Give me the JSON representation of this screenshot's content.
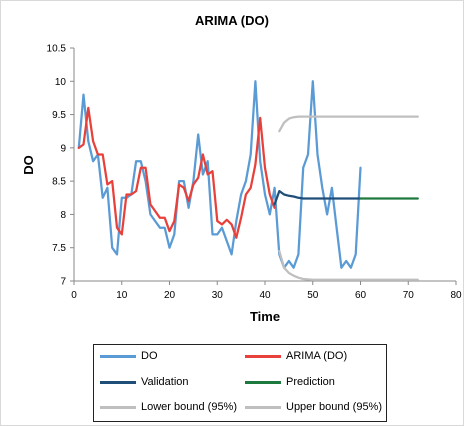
{
  "chart_data": {
    "type": "line",
    "title": "ARIMA (DO)",
    "xlabel": "Time",
    "ylabel": "DO",
    "xlim": [
      0,
      80
    ],
    "ylim": [
      7,
      10.5
    ],
    "x_ticks": [
      "0",
      "10",
      "20",
      "30",
      "40",
      "50",
      "60",
      "70",
      "80"
    ],
    "y_ticks": [
      "7",
      "7.5",
      "8",
      "8.5",
      "9",
      "9.5",
      "10",
      "10.5"
    ],
    "grid": false,
    "legend_position": "bottom",
    "series": [
      {
        "name": "DO",
        "color": "#5b9bd5",
        "points": [
          [
            1,
            9.0
          ],
          [
            2,
            9.8
          ],
          [
            3,
            9.1
          ],
          [
            4,
            8.8
          ],
          [
            5,
            8.9
          ],
          [
            6,
            8.25
          ],
          [
            7,
            8.4
          ],
          [
            8,
            7.5
          ],
          [
            9,
            7.4
          ],
          [
            10,
            8.25
          ],
          [
            11,
            8.25
          ],
          [
            12,
            8.3
          ],
          [
            13,
            8.8
          ],
          [
            14,
            8.8
          ],
          [
            15,
            8.5
          ],
          [
            16,
            8.0
          ],
          [
            17,
            7.9
          ],
          [
            18,
            7.8
          ],
          [
            19,
            7.8
          ],
          [
            20,
            7.5
          ],
          [
            21,
            7.7
          ],
          [
            22,
            8.5
          ],
          [
            23,
            8.5
          ],
          [
            24,
            8.1
          ],
          [
            25,
            8.5
          ],
          [
            26,
            9.2
          ],
          [
            27,
            8.6
          ],
          [
            28,
            8.8
          ],
          [
            29,
            7.7
          ],
          [
            30,
            7.7
          ],
          [
            31,
            7.8
          ],
          [
            32,
            7.6
          ],
          [
            33,
            7.4
          ],
          [
            34,
            7.9
          ],
          [
            35,
            8.3
          ],
          [
            36,
            8.5
          ],
          [
            37,
            8.9
          ],
          [
            38,
            10.0
          ],
          [
            39,
            8.8
          ],
          [
            40,
            8.3
          ],
          [
            41,
            8.0
          ],
          [
            42,
            8.4
          ],
          [
            43,
            7.4
          ],
          [
            44,
            7.2
          ],
          [
            45,
            7.3
          ],
          [
            46,
            7.2
          ],
          [
            47,
            7.4
          ],
          [
            48,
            8.7
          ],
          [
            49,
            8.9
          ],
          [
            50,
            10.0
          ],
          [
            51,
            8.9
          ],
          [
            52,
            8.4
          ],
          [
            53,
            8.0
          ],
          [
            54,
            8.4
          ],
          [
            55,
            7.8
          ],
          [
            56,
            7.2
          ],
          [
            57,
            7.3
          ],
          [
            58,
            7.2
          ],
          [
            59,
            7.4
          ],
          [
            60,
            8.7
          ]
        ]
      },
      {
        "name": "ARIMA (DO)",
        "color": "#e8413b",
        "points": [
          [
            1,
            9.0
          ],
          [
            2,
            9.05
          ],
          [
            3,
            9.6
          ],
          [
            4,
            9.1
          ],
          [
            5,
            8.9
          ],
          [
            6,
            8.9
          ],
          [
            7,
            8.45
          ],
          [
            8,
            8.5
          ],
          [
            9,
            7.8
          ],
          [
            10,
            7.7
          ],
          [
            11,
            8.3
          ],
          [
            12,
            8.3
          ],
          [
            13,
            8.35
          ],
          [
            14,
            8.7
          ],
          [
            15,
            8.7
          ],
          [
            16,
            8.15
          ],
          [
            17,
            8.05
          ],
          [
            18,
            7.95
          ],
          [
            19,
            7.95
          ],
          [
            20,
            7.75
          ],
          [
            21,
            7.9
          ],
          [
            22,
            8.45
          ],
          [
            23,
            8.4
          ],
          [
            24,
            8.2
          ],
          [
            25,
            8.45
          ],
          [
            26,
            8.55
          ],
          [
            27,
            8.9
          ],
          [
            28,
            8.6
          ],
          [
            29,
            8.65
          ],
          [
            30,
            7.9
          ],
          [
            31,
            7.85
          ],
          [
            32,
            7.92
          ],
          [
            33,
            7.85
          ],
          [
            34,
            7.65
          ],
          [
            35,
            7.95
          ],
          [
            36,
            8.3
          ],
          [
            37,
            8.4
          ],
          [
            38,
            8.75
          ],
          [
            39,
            9.45
          ],
          [
            40,
            8.7
          ],
          [
            41,
            8.3
          ],
          [
            42,
            8.1
          ]
        ]
      },
      {
        "name": "Validation",
        "color": "#1f4e79",
        "points": [
          [
            42,
            8.15
          ],
          [
            43,
            8.35
          ],
          [
            44,
            8.3
          ],
          [
            45,
            8.28
          ],
          [
            46,
            8.27
          ],
          [
            47,
            8.25
          ],
          [
            48,
            8.24
          ],
          [
            49,
            8.24
          ],
          [
            50,
            8.24
          ],
          [
            52,
            8.24
          ],
          [
            54,
            8.24
          ],
          [
            56,
            8.24
          ],
          [
            58,
            8.24
          ],
          [
            60,
            8.24
          ]
        ]
      },
      {
        "name": "Prediction",
        "color": "#1d7a3e",
        "points": [
          [
            60,
            8.24
          ],
          [
            62,
            8.24
          ],
          [
            64,
            8.24
          ],
          [
            66,
            8.24
          ],
          [
            68,
            8.24
          ],
          [
            70,
            8.24
          ],
          [
            72,
            8.24
          ]
        ]
      },
      {
        "name": "Lower bound (95%)",
        "color": "#bfbfbf",
        "points": [
          [
            43,
            7.45
          ],
          [
            44,
            7.2
          ],
          [
            45,
            7.12
          ],
          [
            46,
            7.08
          ],
          [
            47,
            7.05
          ],
          [
            48,
            7.03
          ],
          [
            50,
            7.02
          ],
          [
            55,
            7.02
          ],
          [
            60,
            7.02
          ],
          [
            65,
            7.02
          ],
          [
            72,
            7.02
          ]
        ]
      },
      {
        "name": "Upper bound (95%)",
        "color": "#bfbfbf",
        "points": [
          [
            43,
            9.25
          ],
          [
            44,
            9.38
          ],
          [
            45,
            9.44
          ],
          [
            46,
            9.46
          ],
          [
            47,
            9.47
          ],
          [
            48,
            9.47
          ],
          [
            50,
            9.47
          ],
          [
            55,
            9.47
          ],
          [
            60,
            9.47
          ],
          [
            65,
            9.47
          ],
          [
            72,
            9.47
          ]
        ]
      }
    ]
  }
}
